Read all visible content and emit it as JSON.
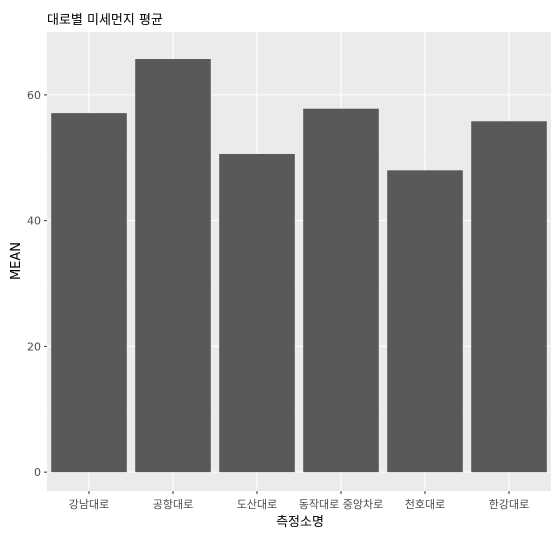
{
  "chart_data": {
    "type": "bar",
    "title": "대로별 미세먼지 평균",
    "xlabel": "측정소명",
    "ylabel": "MEAN",
    "categories": [
      "강남대로",
      "공항대로",
      "도산대로",
      "동작대로 중앙차로",
      "천호대로",
      "한강대로"
    ],
    "values": [
      57.1,
      65.7,
      50.6,
      57.8,
      48.0,
      55.8
    ],
    "ylim": [
      -3,
      70
    ],
    "y_ticks": [
      0,
      20,
      40,
      60
    ],
    "grid": true,
    "legend": "none",
    "colors": {
      "bar": "#595959",
      "panel": "#ebebeb",
      "grid_major": "#ffffff",
      "grid_minor": "#f5f5f5"
    }
  }
}
